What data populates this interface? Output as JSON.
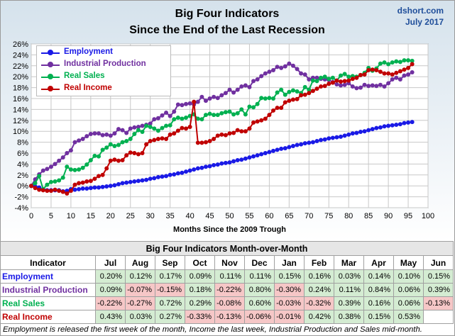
{
  "header": {
    "title_line1": "Big Four Indicators",
    "title_line2": "Since the End of the Last Recession",
    "credit_site": "dshort.com",
    "credit_date": "July 2017"
  },
  "chart_data": {
    "type": "line",
    "xlabel": "Months Since the 2009 Trough",
    "xlim": [
      0,
      100
    ],
    "x_ticks": [
      "0",
      "5",
      "10",
      "15",
      "20",
      "25",
      "30",
      "35",
      "40",
      "45",
      "50",
      "55",
      "60",
      "65",
      "70",
      "75",
      "80",
      "85",
      "90",
      "95",
      "100"
    ],
    "ylim": [
      -4,
      26
    ],
    "y_ticks": [
      "-4%",
      "-2%",
      "0%",
      "2%",
      "4%",
      "6%",
      "8%",
      "10%",
      "12%",
      "14%",
      "16%",
      "18%",
      "20%",
      "22%",
      "24%",
      "26%"
    ],
    "grid": true,
    "legend_position": "top-left",
    "series": [
      {
        "name": "Employment",
        "color": "#1a1ae6",
        "values": [
          0,
          -0.1,
          -0.3,
          -0.6,
          -0.8,
          -0.8,
          -0.8,
          -0.8,
          -1.0,
          -0.9,
          -0.6,
          -0.7,
          -0.6,
          -0.5,
          -0.5,
          -0.4,
          -0.3,
          -0.3,
          -0.2,
          -0.1,
          0,
          0.1,
          0.3,
          0.5,
          0.6,
          0.7,
          0.8,
          0.9,
          1.0,
          1.1,
          1.3,
          1.4,
          1.6,
          1.7,
          1.8,
          2.0,
          2.1,
          2.3,
          2.4,
          2.6,
          2.8,
          3.0,
          3.2,
          3.3,
          3.5,
          3.6,
          3.8,
          3.9,
          4.1,
          4.2,
          4.3,
          4.5,
          4.7,
          4.8,
          5.0,
          5.2,
          5.4,
          5.6,
          5.8,
          6.0,
          6.2,
          6.4,
          6.6,
          6.8,
          6.9,
          7.1,
          7.3,
          7.5,
          7.6,
          7.8,
          7.9,
          8.0,
          8.2,
          8.4,
          8.5,
          8.7,
          8.8,
          8.9,
          9.0,
          9.2,
          9.4,
          9.6,
          9.7,
          9.9,
          10.0,
          10.2,
          10.4,
          10.6,
          10.7,
          10.9,
          11.0,
          11.1,
          11.2,
          11.3,
          11.5,
          11.6,
          11.7
        ]
      },
      {
        "name": "Industrial Production",
        "color": "#7030a0",
        "values": [
          0,
          1.2,
          2.1,
          2.8,
          3.1,
          3.5,
          4.0,
          4.6,
          5.2,
          6.0,
          6.5,
          8.0,
          8.3,
          8.6,
          9.1,
          9.5,
          9.6,
          9.6,
          9.3,
          9.4,
          9.2,
          9.6,
          10.4,
          10.2,
          9.7,
          10.5,
          10.7,
          10.8,
          11.0,
          11.2,
          11.4,
          12.2,
          12.4,
          12.9,
          13.4,
          12.8,
          13.6,
          14.9,
          14.8,
          15.0,
          15.1,
          14.9,
          15.4,
          16.3,
          15.6,
          16.0,
          16.3,
          16.1,
          16.6,
          17.0,
          17.6,
          17.1,
          17.6,
          18.2,
          18.4,
          18.1,
          19.2,
          19.5,
          20.1,
          20.6,
          20.9,
          21.2,
          21.8,
          21.6,
          21.9,
          22.4,
          22.0,
          21.4,
          20.6,
          20.4,
          19.5,
          19.8,
          19.8,
          19.6,
          19.5,
          19.4,
          19.0,
          18.6,
          18.4,
          18.5,
          18.8,
          18.2,
          17.9,
          18.0,
          18.5,
          18.3,
          18.4,
          18.3,
          18.5,
          18.2,
          18.8,
          19.5,
          19.8,
          19.5,
          20.2,
          20.4,
          20.8
        ]
      },
      {
        "name": "Real Sales",
        "color": "#00b050",
        "values": [
          0,
          0.5,
          1.8,
          -0.6,
          0.2,
          0.7,
          0.8,
          1.0,
          1.5,
          3.5,
          3.0,
          2.9,
          3.0,
          3.3,
          3.9,
          4.7,
          5.5,
          5.4,
          6.6,
          7.0,
          7.6,
          7.3,
          7.5,
          8.0,
          8.2,
          8.6,
          9.5,
          10.2,
          9.9,
          11.0,
          10.8,
          10.5,
          10.1,
          10.6,
          11.0,
          11.1,
          12.2,
          12.5,
          12.3,
          12.5,
          12.8,
          13.1,
          12.3,
          12.2,
          13.0,
          13.2,
          13.0,
          13.0,
          13.3,
          13.5,
          13.6,
          13.1,
          13.3,
          14.0,
          13.1,
          14.5,
          14.4,
          15.0,
          16.1,
          16.0,
          16.1,
          16.0,
          17.1,
          17.6,
          16.7,
          17.2,
          17.5,
          17.3,
          17.0,
          18.1,
          17.6,
          19.3,
          19.2,
          19.8,
          20.0,
          19.6,
          19.8,
          19.3,
          20.2,
          20.5,
          20.0,
          20.1,
          20.0,
          20.3,
          20.7,
          21.6,
          21.1,
          21.5,
          22.4,
          22.6,
          22.3,
          22.6,
          22.8,
          22.7,
          23.0,
          23.0,
          22.9
        ]
      },
      {
        "name": "Real Income",
        "color": "#c00000",
        "values": [
          0,
          -0.4,
          -0.7,
          -0.8,
          -0.9,
          -0.9,
          -0.7,
          -0.9,
          -1.1,
          -1.4,
          -0.9,
          0.2,
          0.5,
          0.6,
          0.8,
          0.9,
          1.3,
          1.8,
          2.0,
          3.2,
          4.6,
          4.8,
          4.6,
          4.7,
          5.6,
          6.1,
          6.0,
          5.8,
          6.0,
          7.6,
          8.2,
          8.4,
          8.6,
          8.7,
          8.6,
          9.4,
          9.6,
          10.1,
          10.6,
          10.5,
          10.8,
          15.4,
          7.9,
          7.9,
          8.0,
          8.2,
          8.6,
          9.2,
          9.4,
          9.3,
          9.6,
          9.7,
          10.2,
          10.0,
          10.0,
          10.5,
          11.6,
          11.8,
          12.0,
          12.3,
          13.0,
          13.8,
          14.3,
          14.3,
          15.3,
          15.6,
          15.8,
          15.9,
          16.6,
          16.7,
          17.0,
          17.4,
          17.8,
          18.2,
          18.3,
          18.7,
          18.9,
          19.3,
          19.1,
          19.2,
          19.3,
          19.6,
          19.8,
          20.3,
          20.4,
          21.2,
          21.3,
          21.2,
          20.9,
          20.6,
          20.6,
          20.4,
          20.7,
          21.0,
          21.3,
          21.6,
          22.3
        ]
      }
    ]
  },
  "table": {
    "title": "Big Four Indicators Month-over-Month",
    "header_label": "Indicator",
    "months": [
      "Jul",
      "Aug",
      "Sep",
      "Oct",
      "Nov",
      "Dec",
      "Jan",
      "Feb",
      "Mar",
      "Apr",
      "May",
      "Jun"
    ],
    "rows": [
      {
        "name": "Employment",
        "color": "#1a1ae6",
        "values": [
          "0.20%",
          "0.12%",
          "0.17%",
          "0.09%",
          "0.11%",
          "0.11%",
          "0.15%",
          "0.16%",
          "0.03%",
          "0.14%",
          "0.10%",
          "0.15%"
        ]
      },
      {
        "name": "Industrial Production",
        "color": "#7030a0",
        "values": [
          "0.09%",
          "-0.07%",
          "-0.15%",
          "0.18%",
          "-0.22%",
          "0.80%",
          "-0.30%",
          "0.24%",
          "0.11%",
          "0.84%",
          "0.06%",
          "0.39%"
        ]
      },
      {
        "name": "Real Sales",
        "color": "#00b050",
        "values": [
          "-0.22%",
          "-0.27%",
          "0.72%",
          "0.29%",
          "-0.08%",
          "0.60%",
          "-0.03%",
          "-0.32%",
          "0.39%",
          "0.16%",
          "0.06%",
          "-0.13%"
        ]
      },
      {
        "name": "Real Income",
        "color": "#c00000",
        "values": [
          "0.43%",
          "0.03%",
          "0.27%",
          "-0.33%",
          "-0.13%",
          "-0.06%",
          "-0.01%",
          "0.42%",
          "0.38%",
          "0.15%",
          "0.53%",
          ""
        ]
      }
    ]
  },
  "footnote": "Employment is released the first week of the month, Income the last week, Industrial Production and Sales mid-month."
}
